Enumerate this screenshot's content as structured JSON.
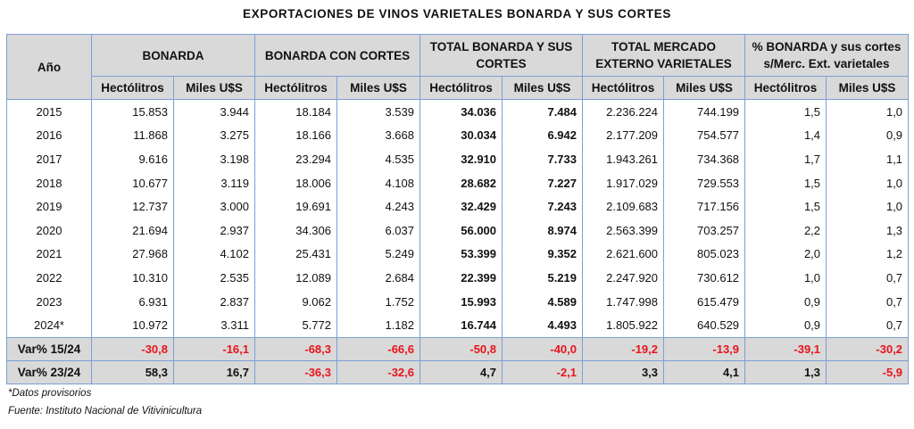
{
  "title": "EXPORTACIONES DE VINOS VARIETALES BONARDA Y SUS CORTES",
  "header": {
    "year": "Año",
    "groups": [
      "BONARDA",
      "BONARDA CON CORTES",
      "TOTAL BONARDA Y SUS CORTES",
      "TOTAL MERCADO EXTERNO VARIETALES",
      "% BONARDA y sus cortes s/Merc. Ext. varietales"
    ],
    "sub": [
      "Hectólitros",
      "Miles U$S"
    ]
  },
  "rows": [
    {
      "year": "2015",
      "values": [
        "15.853",
        "3.944",
        "18.184",
        "3.539",
        "34.036",
        "7.484",
        "2.236.224",
        "744.199",
        "1,5",
        "1,0"
      ]
    },
    {
      "year": "2016",
      "values": [
        "11.868",
        "3.275",
        "18.166",
        "3.668",
        "30.034",
        "6.942",
        "2.177.209",
        "754.577",
        "1,4",
        "0,9"
      ]
    },
    {
      "year": "2017",
      "values": [
        "9.616",
        "3.198",
        "23.294",
        "4.535",
        "32.910",
        "7.733",
        "1.943.261",
        "734.368",
        "1,7",
        "1,1"
      ]
    },
    {
      "year": "2018",
      "values": [
        "10.677",
        "3.119",
        "18.006",
        "4.108",
        "28.682",
        "7.227",
        "1.917.029",
        "729.553",
        "1,5",
        "1,0"
      ]
    },
    {
      "year": "2019",
      "values": [
        "12.737",
        "3.000",
        "19.691",
        "4.243",
        "32.429",
        "7.243",
        "2.109.683",
        "717.156",
        "1,5",
        "1,0"
      ]
    },
    {
      "year": "2020",
      "values": [
        "21.694",
        "2.937",
        "34.306",
        "6.037",
        "56.000",
        "8.974",
        "2.563.399",
        "703.257",
        "2,2",
        "1,3"
      ]
    },
    {
      "year": "2021",
      "values": [
        "27.968",
        "4.102",
        "25.431",
        "5.249",
        "53.399",
        "9.352",
        "2.621.600",
        "805.023",
        "2,0",
        "1,2"
      ]
    },
    {
      "year": "2022",
      "values": [
        "10.310",
        "2.535",
        "12.089",
        "2.684",
        "22.399",
        "5.219",
        "2.247.920",
        "730.612",
        "1,0",
        "0,7"
      ]
    },
    {
      "year": "2023",
      "values": [
        "6.931",
        "2.837",
        "9.062",
        "1.752",
        "15.993",
        "4.589",
        "1.747.998",
        "615.479",
        "0,9",
        "0,7"
      ]
    },
    {
      "year": "2024*",
      "values": [
        "10.972",
        "3.311",
        "5.772",
        "1.182",
        "16.744",
        "4.493",
        "1.805.922",
        "640.529",
        "0,9",
        "0,7"
      ]
    }
  ],
  "variations": [
    {
      "label": "Var% 15/24",
      "values": [
        "-30,8",
        "-16,1",
        "-68,3",
        "-66,6",
        "-50,8",
        "-40,0",
        "-19,2",
        "-13,9",
        "-39,1",
        "-30,2"
      ]
    },
    {
      "label": "Var% 23/24",
      "values": [
        "58,3",
        "16,7",
        "-36,3",
        "-32,6",
        "4,7",
        "-2,1",
        "3,3",
        "4,1",
        "1,3",
        "-5,9"
      ]
    }
  ],
  "colors": {
    "negative": "#e8141c",
    "header_bg": "#d9d9d9",
    "border": "#7a9fd6"
  },
  "footnotes": {
    "provisional": "*Datos provisorios",
    "source": "Fuente: Instituto Nacional de Vitivinicultura"
  }
}
